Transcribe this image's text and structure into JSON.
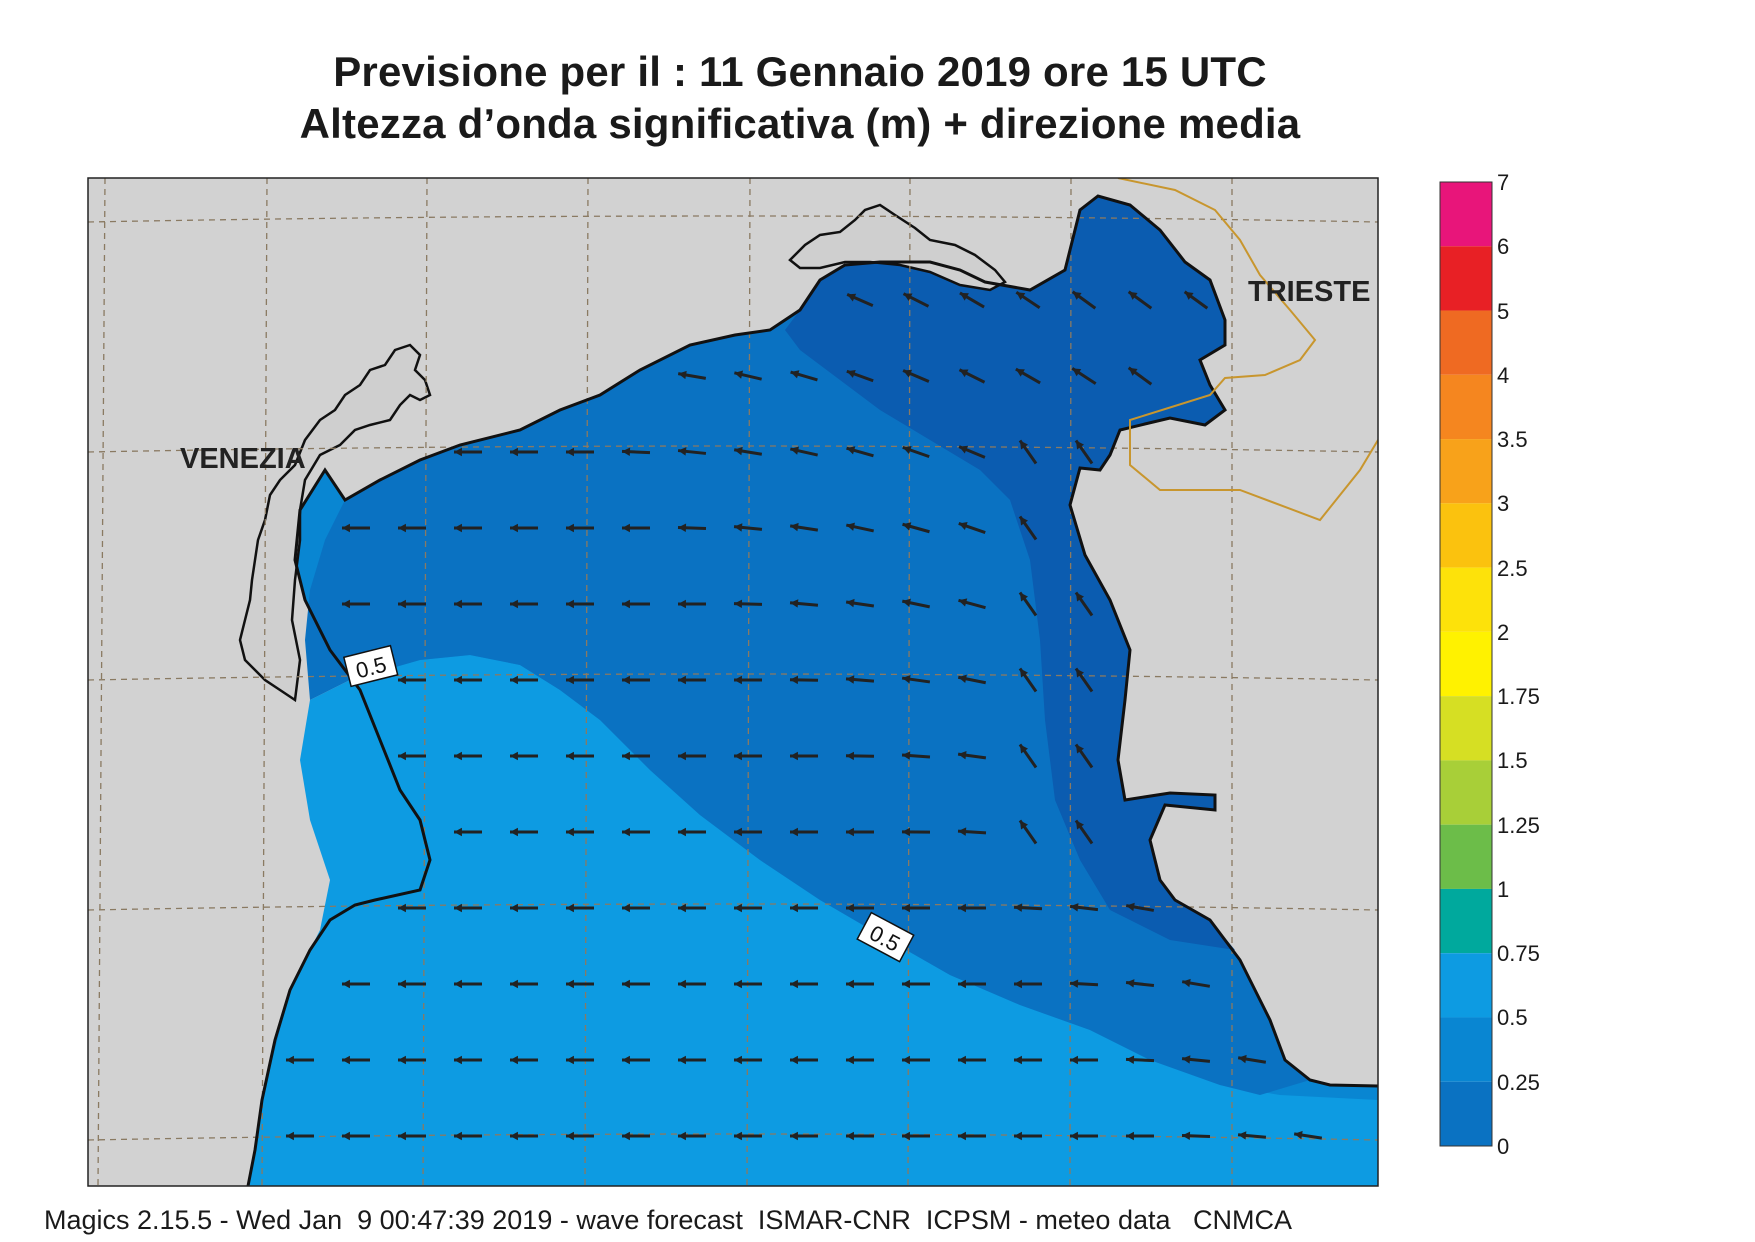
{
  "header": {
    "title_line1": "Previsione per il  :  11  Gennaio  2019   ore 15 UTC",
    "title_line2": "Altezza d’onda significativa (m) + direzione media"
  },
  "map": {
    "places": [
      {
        "name": "VENEZIA"
      },
      {
        "name": "TRIESTE"
      }
    ],
    "contour_labels": [
      "0.5",
      "0.5"
    ],
    "mean_wave_direction": "toward west / west-south-west",
    "colors": {
      "land": "#d2d2d2",
      "sea_0_0.25": "#0b5cb0",
      "sea_0.25_0.5": "#0a72c2",
      "sea_0.5_0.75": "#0986d2",
      "sea_0.75_1": "#0d9be2",
      "border": "#c8962e",
      "grid": "#8a7a62",
      "coast": "#111111"
    }
  },
  "legend": {
    "title": "",
    "bins": [
      {
        "label": "7",
        "color": "#e8157a"
      },
      {
        "label": "6",
        "color": "#e82025"
      },
      {
        "label": "5",
        "color": "#ef6a22"
      },
      {
        "label": "4",
        "color": "#f5861f"
      },
      {
        "label": "3.5",
        "color": "#f8a21a"
      },
      {
        "label": "3",
        "color": "#fbc20e"
      },
      {
        "label": "2.5",
        "color": "#fde20a"
      },
      {
        "label": "2",
        "color": "#fff200"
      },
      {
        "label": "1.75",
        "color": "#d6df23"
      },
      {
        "label": "1.5",
        "color": "#a8cf38"
      },
      {
        "label": "1.25",
        "color": "#6cbd49"
      },
      {
        "label": "1",
        "color": "#00a99d"
      },
      {
        "label": "0.75",
        "color": "#0d9be2"
      },
      {
        "label": "0.5",
        "color": "#0986d2"
      },
      {
        "label": "0.25",
        "color": "#0a72c2"
      },
      {
        "label": "0",
        "color": "#0b5cb0"
      }
    ]
  },
  "footer": {
    "text": "Magics 2.15.5 - Wed Jan  9 00:47:39 2019 - wave forecast  ISMAR-CNR  ICPSM - meteo data   CNMCA"
  }
}
